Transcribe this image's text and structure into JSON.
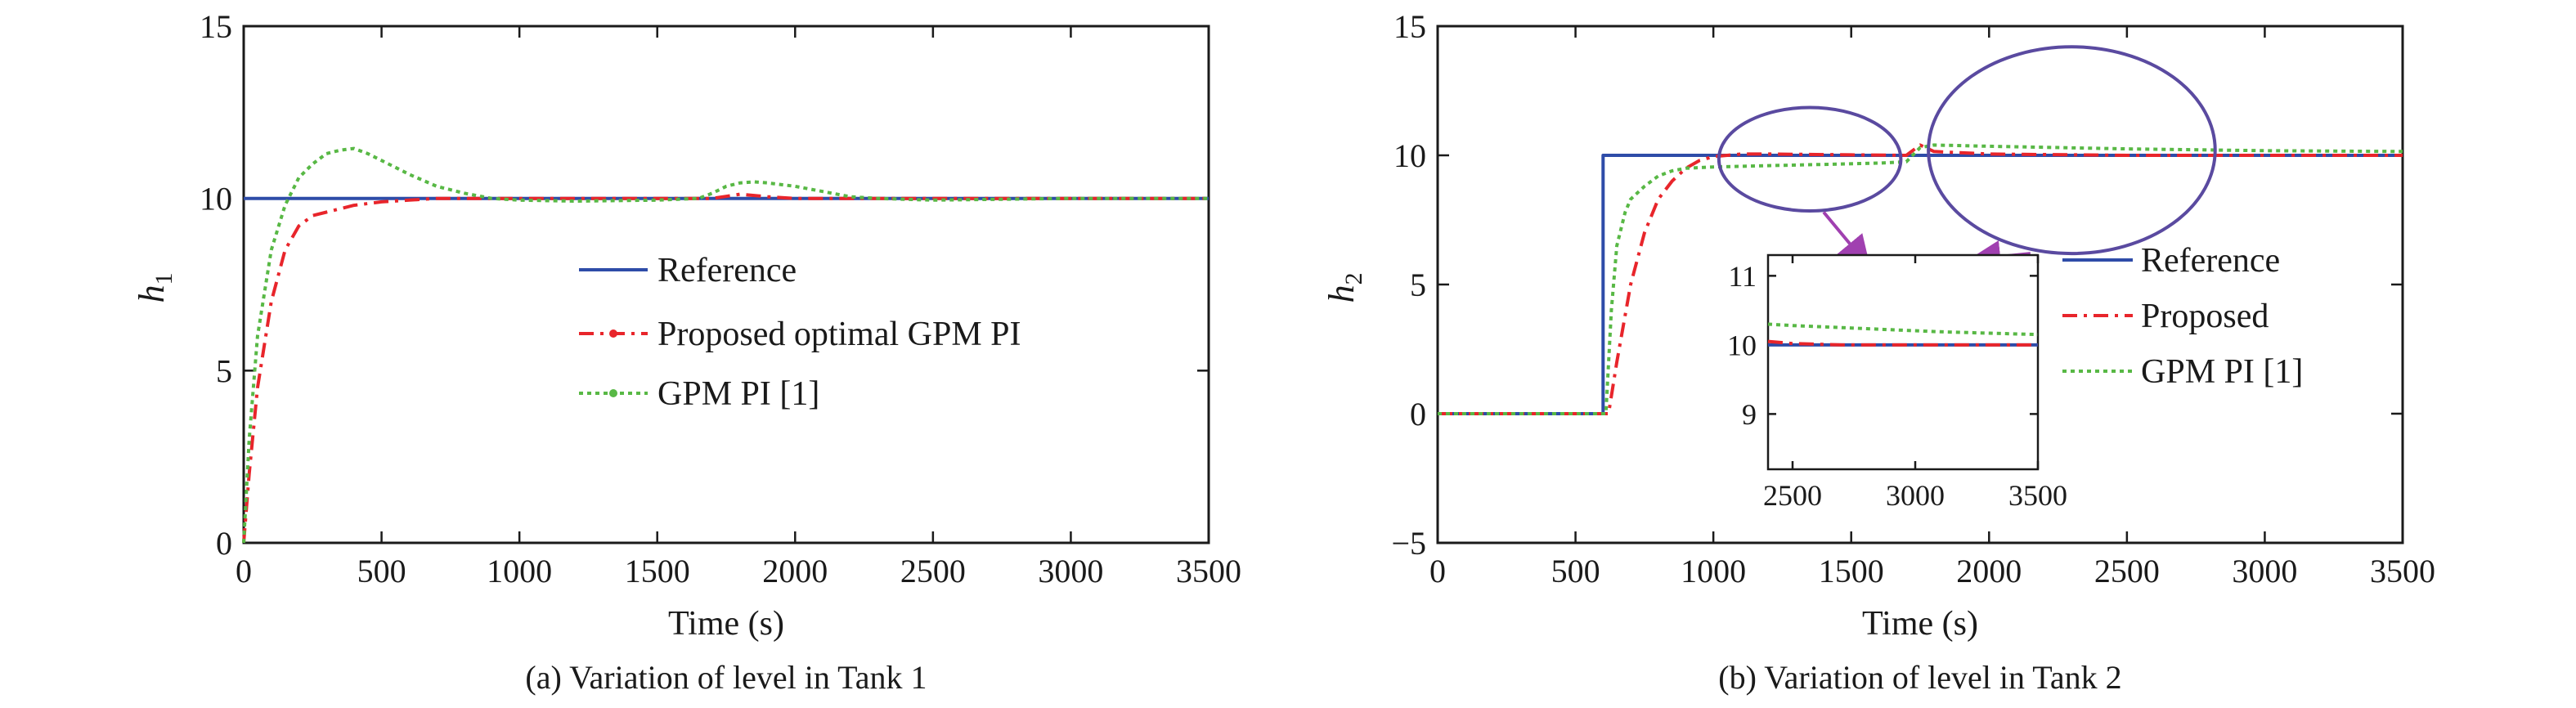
{
  "colors": {
    "reference": "#2e4ca8",
    "proposed": "#e8252b",
    "gpm": "#58b845",
    "annotation_ellipse": "#5a4aa0",
    "annotation_arrow": "#a040b0",
    "axes": "#1a1a1a"
  },
  "chart_data": [
    {
      "type": "line",
      "caption": "(a) Variation of level in Tank 1",
      "xlabel": "Time (s)",
      "ylabel": "h",
      "ylabel_sub": "1",
      "xlim": [
        0,
        3500
      ],
      "ylim": [
        0,
        15
      ],
      "xticks": [
        "0",
        "500",
        "1000",
        "1500",
        "2000",
        "2500",
        "3000",
        "3500"
      ],
      "yticks": [
        "0",
        "5",
        "10",
        "15"
      ],
      "grid": false,
      "legend_position": "center-right",
      "series": [
        {
          "name": "Reference",
          "style": "solid",
          "color_key": "reference",
          "x": [
            0,
            3500
          ],
          "y": [
            10,
            10
          ]
        },
        {
          "name": "Proposed optimal GPM PI",
          "style": "dashdot",
          "color_key": "proposed",
          "x": [
            0,
            20,
            50,
            100,
            150,
            200,
            250,
            300,
            400,
            500,
            600,
            700,
            800,
            1000,
            1500,
            1700,
            1800,
            1900,
            2000,
            2200,
            2500,
            3500
          ],
          "y": [
            0,
            2.0,
            4.5,
            7.0,
            8.5,
            9.2,
            9.5,
            9.6,
            9.8,
            9.9,
            9.95,
            10.0,
            10.0,
            10.0,
            10.0,
            10.0,
            10.12,
            10.05,
            10.0,
            10.0,
            10.0,
            10.0
          ]
        },
        {
          "name": "GPM PI [1]",
          "style": "dotted",
          "color_key": "gpm",
          "x": [
            0,
            20,
            50,
            100,
            150,
            200,
            250,
            300,
            350,
            400,
            450,
            500,
            550,
            600,
            700,
            800,
            900,
            1000,
            1200,
            1500,
            1650,
            1700,
            1750,
            1800,
            1850,
            1900,
            2000,
            2100,
            2200,
            2300,
            2500,
            3000,
            3500
          ],
          "y": [
            0,
            3.0,
            6.0,
            8.5,
            9.8,
            10.6,
            11.0,
            11.3,
            11.4,
            11.45,
            11.3,
            11.1,
            10.9,
            10.7,
            10.35,
            10.15,
            10.0,
            9.95,
            9.92,
            9.95,
            10.0,
            10.15,
            10.35,
            10.45,
            10.48,
            10.45,
            10.35,
            10.2,
            10.05,
            10.0,
            9.95,
            10.0,
            10.0
          ]
        }
      ]
    },
    {
      "type": "line",
      "caption": "(b) Variation of level in Tank 2",
      "xlabel": "Time (s)",
      "ylabel": "h",
      "ylabel_sub": "2",
      "xlim": [
        0,
        3500
      ],
      "ylim": [
        -5,
        15
      ],
      "xticks": [
        "0",
        "500",
        "1000",
        "1500",
        "2000",
        "2500",
        "3000",
        "3500"
      ],
      "yticks": [
        "−5",
        "0",
        "5",
        "10",
        "15"
      ],
      "grid": false,
      "legend_position": "center-right",
      "series": [
        {
          "name": "Reference",
          "style": "solid",
          "color_key": "reference",
          "x": [
            0,
            600,
            600,
            3500
          ],
          "y": [
            0,
            0,
            10,
            10
          ]
        },
        {
          "name": "Proposed",
          "style": "dashdot",
          "color_key": "proposed",
          "x": [
            0,
            620,
            650,
            700,
            750,
            800,
            850,
            900,
            950,
            1000,
            1100,
            1200,
            1500,
            1700,
            1750,
            1800,
            2000,
            2500,
            3000,
            3500
          ],
          "y": [
            0,
            0,
            2.0,
            5.0,
            7.0,
            8.3,
            9.0,
            9.5,
            9.8,
            9.95,
            10.05,
            10.05,
            10.02,
            10.0,
            10.4,
            10.15,
            10.05,
            10.0,
            10.0,
            10.0
          ]
        },
        {
          "name": "GPM PI [1]",
          "style": "dotted",
          "color_key": "gpm",
          "x": [
            0,
            610,
            630,
            650,
            680,
            700,
            750,
            800,
            850,
            900,
            1000,
            1200,
            1400,
            1600,
            1700,
            1750,
            1800,
            2000,
            2500,
            3000,
            3500
          ],
          "y": [
            0,
            0,
            4.0,
            6.5,
            7.8,
            8.3,
            8.8,
            9.2,
            9.4,
            9.5,
            9.55,
            9.6,
            9.65,
            9.7,
            9.75,
            10.3,
            10.4,
            10.35,
            10.25,
            10.18,
            10.15
          ]
        }
      ],
      "inset": {
        "xlim": [
          2400,
          3500
        ],
        "ylim": [
          8.2,
          11.3
        ],
        "xticks": [
          "2500",
          "3000",
          "3500"
        ],
        "yticks": [
          "9",
          "10",
          "11"
        ],
        "legend": [
          "Reference",
          "Proposed",
          "GPM PI [1]"
        ],
        "series": [
          {
            "color_key": "reference",
            "style": "solid",
            "x": [
              2400,
              3500
            ],
            "y": [
              10,
              10
            ]
          },
          {
            "color_key": "proposed",
            "style": "dashdot",
            "x": [
              2400,
              2500,
              2700,
              3000,
              3200,
              3500
            ],
            "y": [
              10.05,
              10.02,
              10.0,
              10.0,
              10.0,
              10.0
            ]
          },
          {
            "color_key": "gpm",
            "style": "dotted",
            "x": [
              2400,
              2500,
              2700,
              2900,
              3100,
              3300,
              3500
            ],
            "y": [
              10.3,
              10.28,
              10.25,
              10.22,
              10.19,
              10.17,
              10.15
            ]
          }
        ]
      },
      "annotations": [
        {
          "type": "ellipse",
          "cx": 1350,
          "cy": 9.85,
          "rx": 330,
          "ry": 2.0
        },
        {
          "type": "ellipse",
          "cx": 2300,
          "cy": 10.2,
          "rx": 520,
          "ry": 4.0
        },
        {
          "type": "arrow",
          "from": [
            1400,
            7.8
          ],
          "to": [
            1540,
            6.0
          ]
        },
        {
          "type": "arrow",
          "from": [
            2150,
            6.2
          ],
          "to": [
            1970,
            6.0
          ]
        }
      ]
    }
  ]
}
